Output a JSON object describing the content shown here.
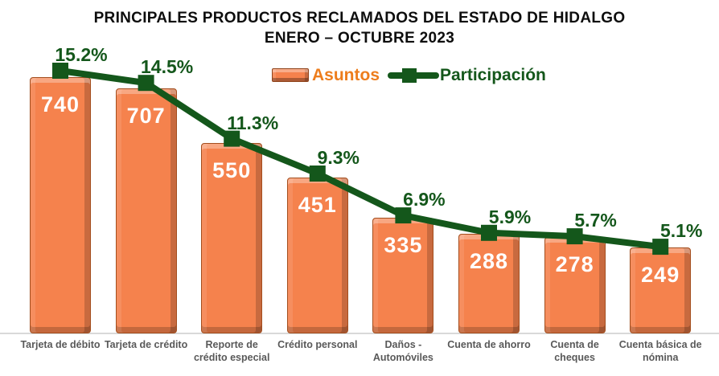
{
  "title": {
    "line1": "PRINCIPALES PRODUCTOS RECLAMADOS DEL ESTADO DE HIDALGO",
    "line2": "ENERO – OCTUBRE 2023"
  },
  "legend": {
    "position": "top-center",
    "items": [
      {
        "label": "Asuntos",
        "swatch": "orange-3d-bar",
        "color": "#ED7D1C"
      },
      {
        "label": "Participación",
        "swatch": "green-line-with-square-marker",
        "color": "#14571B"
      }
    ]
  },
  "colors": {
    "bar_fill": "#F5824D",
    "bar_border": "#A34E1E",
    "line": "#14571B",
    "value_label": "#FFFFFF",
    "pct_label": "#14571B",
    "axis_label": "#595959",
    "baseline": "#D9D9D9",
    "title": "#0D0D0D"
  },
  "chart_data": {
    "type": "bar",
    "subtype": "bar-with-line-overlay",
    "title": "PRINCIPALES PRODUCTOS RECLAMADOS DEL ESTADO DE HIDALGO ENERO – OCTUBRE 2023",
    "categories": [
      "Tarjeta de débito",
      "Tarjeta de crédito",
      "Reporte de\ncrédito especial",
      "Crédito personal",
      "Daños -\nAutomóviles",
      "Cuenta de ahorro",
      "Cuenta de\ncheques",
      "Cuenta básica de\nnómina"
    ],
    "series": [
      {
        "name": "Asuntos",
        "type": "bar",
        "values": [
          740,
          707,
          550,
          451,
          335,
          288,
          278,
          249
        ],
        "color": "#F5824D",
        "value_labels": "white, inside top of bar"
      },
      {
        "name": "Participación",
        "type": "line",
        "values": [
          15.2,
          14.5,
          11.3,
          9.3,
          6.9,
          5.9,
          5.7,
          5.1
        ],
        "unit": "%",
        "color": "#14571B",
        "marker": "square",
        "value_labels": "dark green, above markers"
      }
    ],
    "xlabel": "",
    "ylabel": "",
    "grid": false,
    "axes_visible": false,
    "legend_position": "top-center",
    "bar_axis_range_hint": [
      0,
      800
    ],
    "line_axis_range_hint": [
      0,
      16
    ]
  }
}
